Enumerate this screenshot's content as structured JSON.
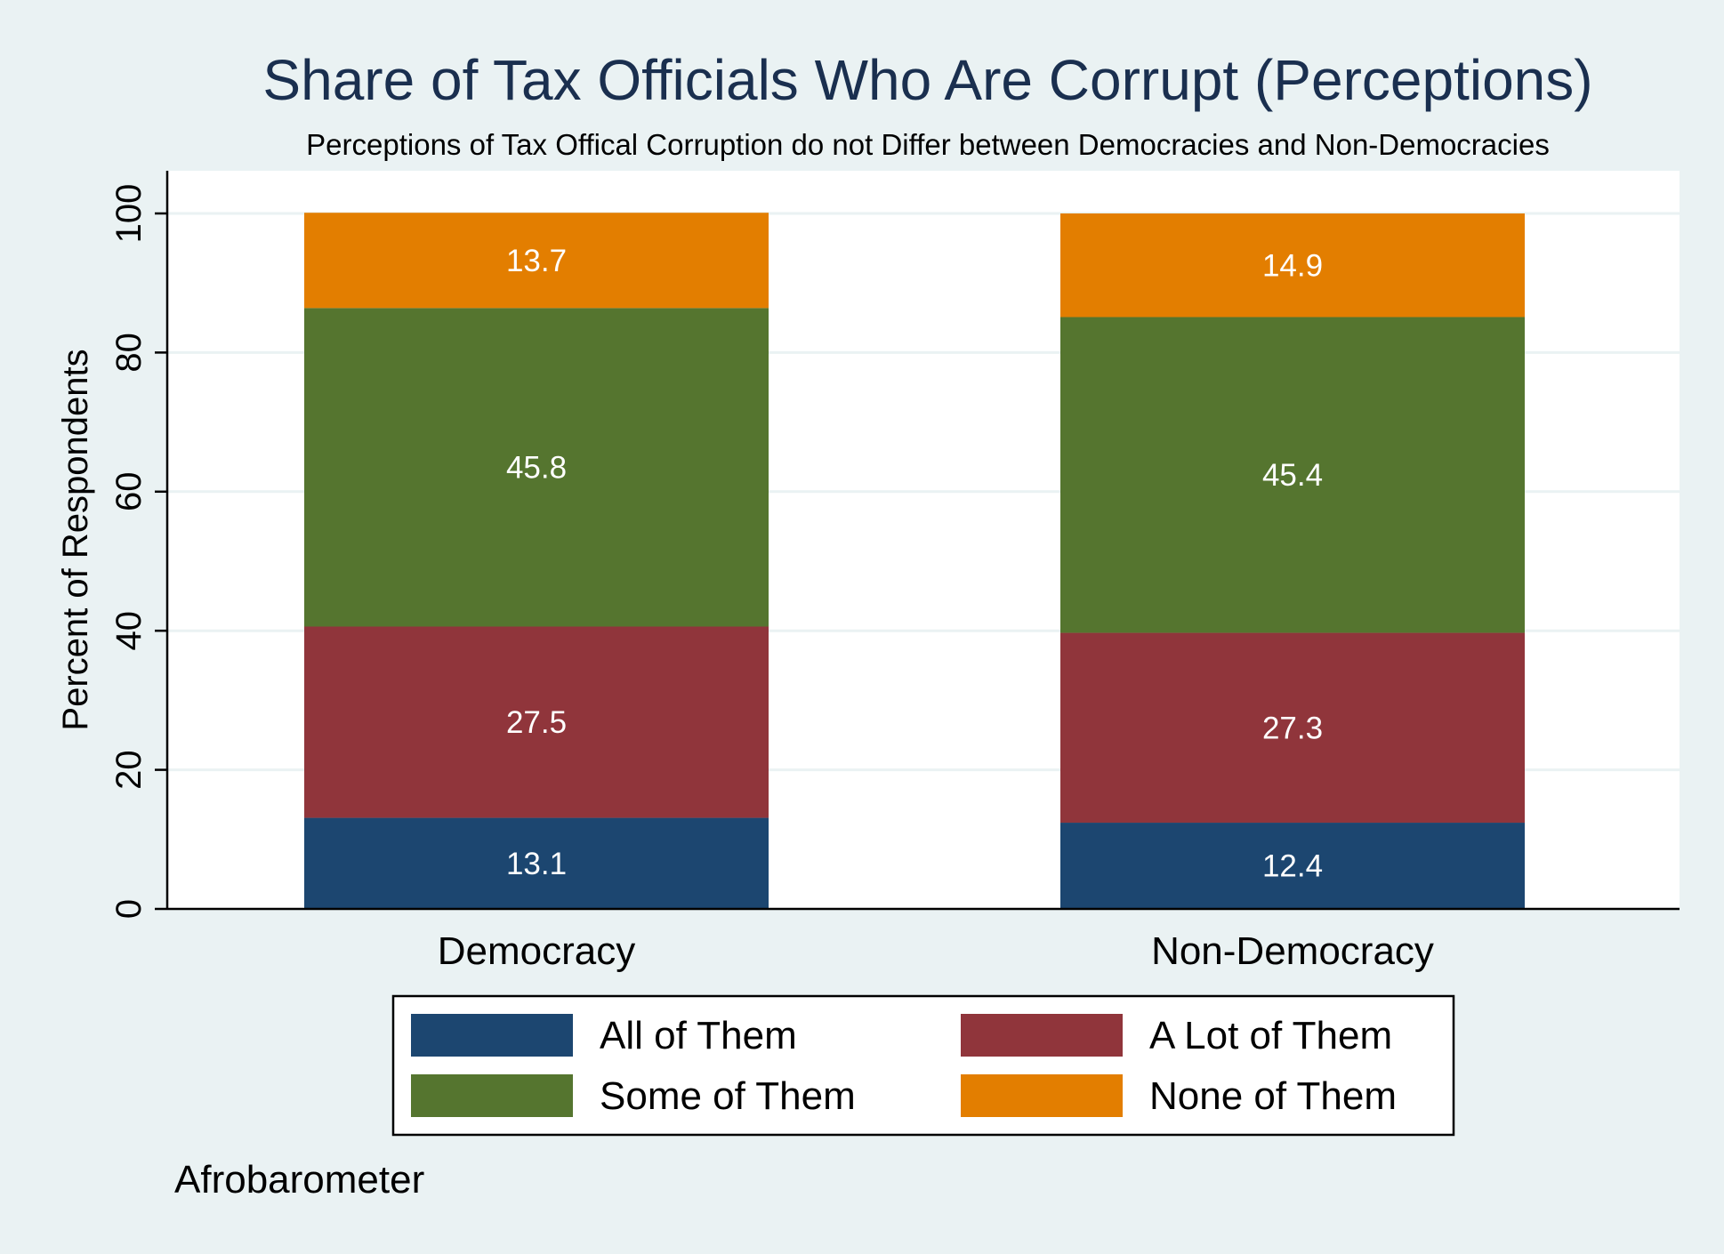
{
  "chart_data": {
    "type": "bar",
    "stacked": true,
    "title": "Share of Tax Officials Who Are Corrupt (Perceptions)",
    "subtitle": "Perceptions of Tax Offical Corruption do not Differ between Democracies and Non-Democracies",
    "xlabel": "",
    "ylabel": "Percent of Respondents",
    "ylim": [
      0,
      100
    ],
    "yticks": [
      0,
      20,
      40,
      60,
      80,
      100
    ],
    "grid": true,
    "legend_position": "bottom",
    "note": "Afrobarometer",
    "categories": [
      "Democracy",
      "Non-Democracy"
    ],
    "series": [
      {
        "name": "All of Them",
        "color": "#1c4670",
        "values": [
          13.1,
          12.4
        ]
      },
      {
        "name": "A Lot of Them",
        "color": "#90353b",
        "values": [
          27.5,
          27.3
        ]
      },
      {
        "name": "Some of Them",
        "color": "#55752f",
        "values": [
          45.8,
          45.4
        ]
      },
      {
        "name": "None of Them",
        "color": "#e37e00",
        "values": [
          13.7,
          14.9
        ]
      }
    ],
    "colors": {
      "background": "#eaf2f3",
      "plot_background": "#ffffff",
      "title": "#1a2f4f",
      "gridline": "#eaf2f3",
      "data_label": "#ffffff"
    }
  }
}
